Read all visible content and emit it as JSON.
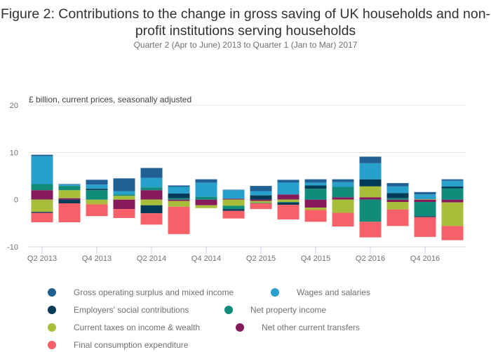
{
  "chart_data": {
    "type": "bar",
    "stacked": true,
    "title": "Figure 2: Contributions to the change in gross saving of UK households and non-profit institutions serving households",
    "subtitle": "Quarter 2 (Apr to June) 2013 to Quarter 1 (Jan to Mar) 2017",
    "ylabel": "£ billion, current prices, seasonally adjusted",
    "xlabel": "",
    "ylim": [
      -10,
      20
    ],
    "yticks": [
      "20",
      "10",
      "0",
      "-10"
    ],
    "ytick_values": [
      20,
      10,
      0,
      -10
    ],
    "grid": true,
    "legend_position": "bottom",
    "categories": [
      "Q2 2013",
      "Q3 2013",
      "Q4 2013",
      "Q1 2014",
      "Q2 2014",
      "Q3 2014",
      "Q4 2014",
      "Q1 2015",
      "Q2 2015",
      "Q3 2015",
      "Q4 2015",
      "Q1 2016",
      "Q2 2016",
      "Q3 2016",
      "Q4 2016",
      "Q1 2017"
    ],
    "xtick_labels": [
      "Q2 2013",
      "Q4 2013",
      "Q2 2014",
      "Q4 2014",
      "Q2 2015",
      "Q4 2015",
      "Q2 2016",
      "Q4 2016"
    ],
    "series": [
      {
        "name": "Net other current transfers",
        "color": "#871a5b",
        "values": [
          2.0,
          0.3,
          0.0,
          -2.0,
          2.0,
          -0.3,
          -1.2,
          0.2,
          -0.3,
          1.1,
          -1.7,
          0.5,
          0.5,
          -0.5,
          -0.5,
          -0.6
        ]
      },
      {
        "name": "Current taxes on income & wealth",
        "color": "#a8bd3a",
        "values": [
          -2.6,
          1.7,
          -1.0,
          0.8,
          -1.2,
          -1.2,
          -0.6,
          -1.3,
          -0.4,
          -0.5,
          -0.5,
          -2.8,
          2.3,
          -1.6,
          0.1,
          -5.0
        ]
      },
      {
        "name": "Net property income",
        "color": "#118c7b",
        "values": [
          1.3,
          0.9,
          2.0,
          0.3,
          0.6,
          0.3,
          0.6,
          -0.7,
          -0.1,
          -0.1,
          2.3,
          2.2,
          -4.7,
          0.3,
          -3.0,
          2.4
        ]
      },
      {
        "name": "Employers' social contributions",
        "color": "#003c57",
        "values": [
          -0.2,
          -0.8,
          0.3,
          0.0,
          -1.7,
          1.0,
          0.0,
          -0.4,
          0.9,
          -0.5,
          0.7,
          0.0,
          1.5,
          1.1,
          -0.2,
          0.4
        ]
      },
      {
        "name": "Wages and salaries",
        "color": "#27a0cc",
        "values": [
          5.9,
          0.3,
          0.9,
          0.7,
          2.0,
          1.4,
          3.0,
          1.8,
          0.9,
          2.5,
          0.6,
          1.0,
          3.4,
          1.4,
          1.0,
          1.2
        ]
      },
      {
        "name": "Gross operating surplus and mixed income",
        "color": "#206095",
        "values": [
          0.3,
          0.1,
          1.0,
          2.7,
          2.1,
          0.3,
          0.7,
          0.1,
          1.1,
          0.6,
          0.7,
          0.6,
          1.4,
          0.7,
          0.5,
          0.3
        ]
      },
      {
        "name": "Final consumption expenditure",
        "color": "#f66068",
        "values": [
          -2.0,
          -4.0,
          -2.5,
          -1.9,
          -2.4,
          -5.8,
          0.0,
          -1.6,
          -1.2,
          -3.1,
          -2.5,
          -2.9,
          -3.3,
          -3.5,
          -4.2,
          -3.0
        ]
      }
    ]
  },
  "legend": [
    {
      "label": "Gross operating surplus and mixed income",
      "color": "#206095"
    },
    {
      "label": "Wages and salaries",
      "color": "#27a0cc"
    },
    {
      "label": "Employers' social contributions",
      "color": "#003c57"
    },
    {
      "label": "Net property income",
      "color": "#118c7b"
    },
    {
      "label": "Current taxes on income & wealth",
      "color": "#a8bd3a"
    },
    {
      "label": "Net other current transfers",
      "color": "#871a5b"
    },
    {
      "label": "Final consumption expenditure",
      "color": "#f66068"
    }
  ]
}
